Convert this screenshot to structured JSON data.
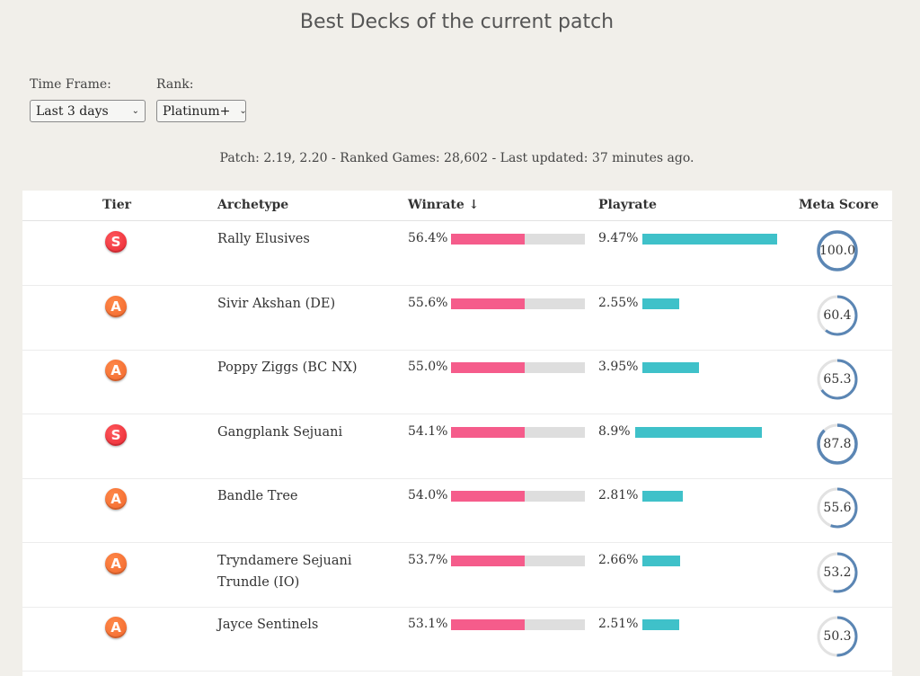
{
  "page_title": "Best Decks of the current patch",
  "filters": {
    "time_frame_label": "Time Frame:",
    "time_frame_value": "Last 3 days",
    "rank_label": "Rank:",
    "rank_value": "Platinum+"
  },
  "meta_line": "Patch: 2.19, 2.20 - Ranked Games: 28,602 - Last updated: 37 minutes ago.",
  "columns": {
    "tier": "Tier",
    "archetype": "Archetype",
    "winrate": "Winrate ↓",
    "playrate": "Playrate",
    "meta_score": "Meta Score"
  },
  "colors": {
    "winrate_bar": "#f55c8b",
    "playrate_bar": "#3fc1c9",
    "tier_s": "#e8242e",
    "tier_a": "#f0642a",
    "score_ring": "#5b86b4"
  },
  "rows": [
    {
      "tier": "S",
      "archetype": "Rally Elusives",
      "winrate": "56.4%",
      "winrate_fill": 0.57,
      "playrate": "9.47%",
      "playrate_fill": 1.0,
      "score": "100.0",
      "score_value": 100.0
    },
    {
      "tier": "A",
      "archetype": "Sivir Akshan (DE)",
      "winrate": "55.6%",
      "winrate_fill": 0.56,
      "playrate": "2.55%",
      "playrate_fill": 0.27,
      "score": "60.4",
      "score_value": 60.4
    },
    {
      "tier": "A",
      "archetype": "Poppy Ziggs (BC NX)",
      "winrate": "55.0%",
      "winrate_fill": 0.55,
      "playrate": "3.95%",
      "playrate_fill": 0.42,
      "score": "65.3",
      "score_value": 65.3
    },
    {
      "tier": "S",
      "archetype": "Gangplank Sejuani",
      "winrate": "54.1%",
      "winrate_fill": 0.54,
      "playrate": "8.9%",
      "playrate_fill": 0.94,
      "score": "87.8",
      "score_value": 87.8
    },
    {
      "tier": "A",
      "archetype": "Bandle Tree",
      "winrate": "54.0%",
      "winrate_fill": 0.54,
      "playrate": "2.81%",
      "playrate_fill": 0.3,
      "score": "55.6",
      "score_value": 55.6
    },
    {
      "tier": "A",
      "archetype": "Tryndamere Sejuani Trundle (IO)",
      "winrate": "53.7%",
      "winrate_fill": 0.54,
      "playrate": "2.66%",
      "playrate_fill": 0.28,
      "score": "53.2",
      "score_value": 53.2
    },
    {
      "tier": "A",
      "archetype": "Jayce Sentinels",
      "winrate": "53.1%",
      "winrate_fill": 0.53,
      "playrate": "2.51%",
      "playrate_fill": 0.27,
      "score": "50.3",
      "score_value": 50.3
    }
  ]
}
